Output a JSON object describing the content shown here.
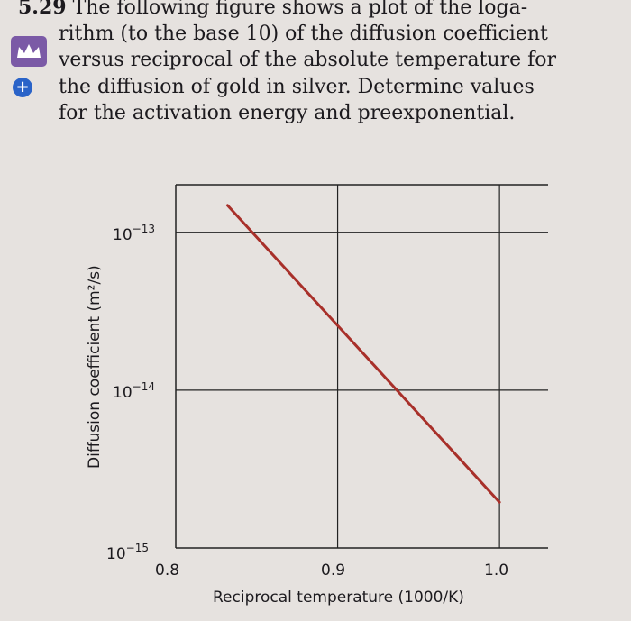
{
  "problem": {
    "number": "5.29",
    "lines": [
      "The following figure shows a plot of the loga-",
      "rithm (to the base 10) of the diffusion coefficient",
      "versus reciprocal of the absolute temperature for",
      "the diffusion of gold in silver. Determine values",
      "for the activation energy and preexponential."
    ],
    "icons": [
      "crown-icon",
      "plus-circle-icon"
    ],
    "icon_colors": {
      "crown": "#7b5aa6",
      "plus": "#2a63c8"
    }
  },
  "chart_data": {
    "type": "line",
    "xlabel": "Reciprocal temperature (1000/K)",
    "ylabel": "Diffusion coefficient (m²/s)",
    "x_ticks": [
      "0.8",
      "0.9",
      "1.0"
    ],
    "x_tick_values": [
      0.8,
      0.9,
      1.0
    ],
    "y_ticks": [
      {
        "base": "10",
        "exp": "−13",
        "value": 1e-13
      },
      {
        "base": "10",
        "exp": "−14",
        "value": 1e-14
      },
      {
        "base": "10",
        "exp": "−15",
        "value": 1e-15
      }
    ],
    "y_scale": "log",
    "xlim": [
      0.8,
      1.03
    ],
    "ylim": [
      1e-15,
      2e-13
    ],
    "grid": true,
    "line_color": "#a8302a",
    "series": [
      {
        "x": [
          0.832,
          1.0
        ],
        "y": [
          1.48e-13,
          1.95e-15
        ]
      }
    ]
  }
}
